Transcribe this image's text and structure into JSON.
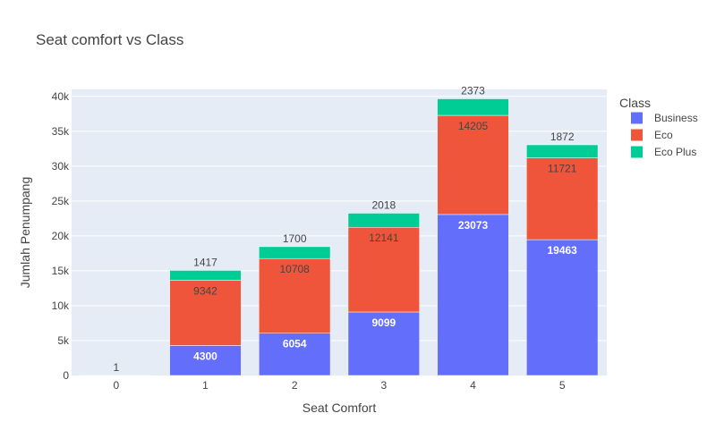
{
  "chart_data": {
    "type": "bar",
    "stacked": true,
    "title": "Seat comfort vs Class",
    "xlabel": "Seat Comfort",
    "ylabel": "Jumlah Penumpang",
    "categories": [
      "0",
      "1",
      "2",
      "3",
      "4",
      "5"
    ],
    "ylim": [
      0,
      41000
    ],
    "yticks": [
      0,
      5000,
      10000,
      15000,
      20000,
      25000,
      30000,
      35000,
      40000
    ],
    "ytick_labels": [
      "0",
      "5k",
      "10k",
      "15k",
      "20k",
      "25k",
      "30k",
      "35k",
      "40k"
    ],
    "legend_title": "Class",
    "legend_position": "top-right",
    "grid": true,
    "series": [
      {
        "name": "Business",
        "color": "#636efa",
        "values": [
          null,
          4300,
          6054,
          9099,
          23073,
          19463
        ],
        "label_color": "#ffffff",
        "label_weight": "bold"
      },
      {
        "name": "Eco",
        "color": "#ef553b",
        "values": [
          null,
          9342,
          10708,
          12141,
          14205,
          11721
        ],
        "label_color": "#444444",
        "label_weight": "normal"
      },
      {
        "name": "Eco Plus",
        "color": "#00cc96",
        "values": [
          1,
          1417,
          1700,
          2018,
          2373,
          1872
        ],
        "label_color": "#444444",
        "label_weight": "normal"
      }
    ]
  }
}
